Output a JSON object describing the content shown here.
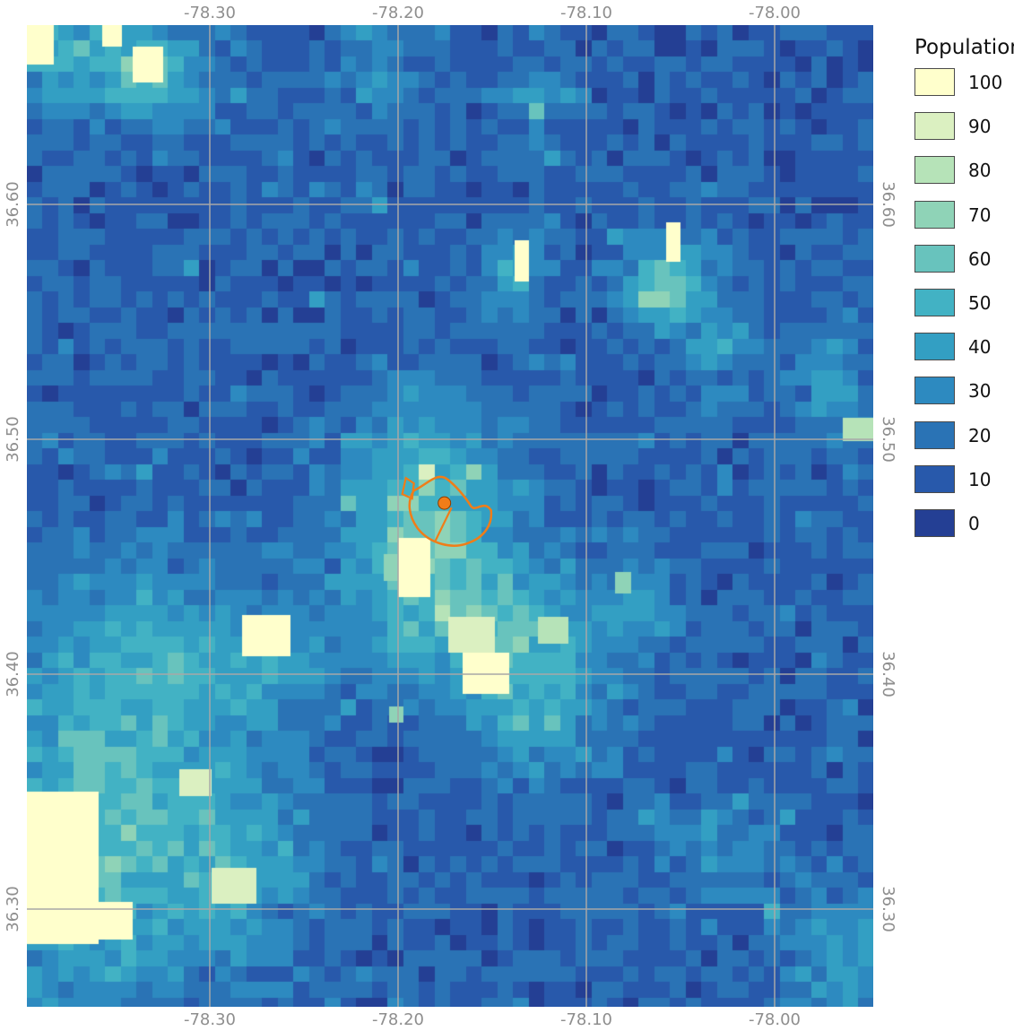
{
  "map": {
    "longitude_ticks": [
      "-78.30",
      "-78.20",
      "-78.10",
      "-78.00"
    ],
    "latitude_ticks": [
      "36.60",
      "36.50",
      "36.40",
      "36.30"
    ],
    "extent": {
      "lon_min": -78.395,
      "lon_max": -77.947,
      "lat_min": 36.257,
      "lat_max": 36.676
    },
    "grid_color": "#a7a7a7",
    "marker": {
      "lon": -78.174,
      "lat": 36.472,
      "color": "#f07d18"
    },
    "background_color": "#243f94"
  },
  "legend": {
    "title": "Population",
    "items": [
      {
        "label": "100",
        "color": "#ffffcc"
      },
      {
        "label": "90",
        "color": "#dbf0c1"
      },
      {
        "label": "80",
        "color": "#b6e3b8"
      },
      {
        "label": "70",
        "color": "#8fd3b7"
      },
      {
        "label": "60",
        "color": "#68c3bd"
      },
      {
        "label": "50",
        "color": "#42b2c4"
      },
      {
        "label": "40",
        "color": "#339fc3"
      },
      {
        "label": "30",
        "color": "#2d8ac0"
      },
      {
        "label": "20",
        "color": "#2a73b5"
      },
      {
        "label": "10",
        "color": "#2859ab"
      },
      {
        "label": "0",
        "color": "#243f94"
      }
    ]
  }
}
